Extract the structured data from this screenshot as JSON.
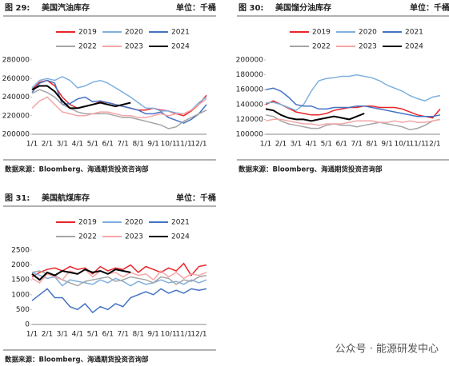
{
  "watermark": "公众号 · 能源研发中心",
  "chart_data": [
    {
      "type": "line",
      "figure_label": "图 29:",
      "title": "美国汽油库存",
      "unit": "单位：千桶",
      "source": "数据来源：Bloomberg、海通期货投资咨询部",
      "categories": [
        "1/1",
        null,
        "2/1",
        null,
        "3/1",
        null,
        "4/1",
        null,
        "5/1",
        null,
        "6/1",
        null,
        "7/1",
        null,
        "8/1",
        null,
        "9/1",
        null,
        "10/1",
        null,
        "11/1",
        null,
        "12/1",
        null
      ],
      "ylim": [
        200000,
        280000
      ],
      "yticks": [
        200000,
        220000,
        240000,
        260000,
        280000
      ],
      "series": [
        {
          "name": "2019",
          "color": "#e8262a",
          "values": [
            248000,
            256000,
            258000,
            252000,
            240000,
            232000,
            228000,
            230000,
            232000,
            235000,
            234000,
            232000,
            230000,
            228000,
            226000,
            226000,
            228000,
            226000,
            225000,
            222000,
            220000,
            225000,
            232000,
            242000
          ]
        },
        {
          "name": "2020",
          "color": "#7fb0dd",
          "values": [
            250000,
            258000,
            260000,
            258000,
            262000,
            258000,
            250000,
            252000,
            256000,
            258000,
            255000,
            250000,
            245000,
            240000,
            234000,
            228000,
            228000,
            225000,
            225000,
            223000,
            222000,
            226000,
            234000,
            240000
          ]
        },
        {
          "name": "2021",
          "color": "#4472c4",
          "values": [
            245000,
            255000,
            258000,
            255000,
            232000,
            233000,
            238000,
            240000,
            235000,
            236000,
            234000,
            232000,
            230000,
            228000,
            226000,
            222000,
            222000,
            224000,
            218000,
            215000,
            212000,
            216000,
            222000,
            232000
          ]
        },
        {
          "name": "2022",
          "color": "#a5a5a5",
          "values": [
            244000,
            248000,
            245000,
            240000,
            232000,
            228000,
            224000,
            222000,
            222000,
            222000,
            222000,
            220000,
            218000,
            218000,
            216000,
            214000,
            212000,
            210000,
            206000,
            208000,
            214000,
            218000,
            222000,
            226000
          ]
        },
        {
          "name": "2023",
          "color": "#f4a6a6",
          "values": [
            228000,
            236000,
            240000,
            232000,
            224000,
            222000,
            220000,
            220000,
            222000,
            224000,
            224000,
            222000,
            220000,
            220000,
            218000,
            218000,
            220000,
            222000,
            220000,
            222000,
            222000,
            226000,
            232000,
            238000
          ]
        },
        {
          "name": "2024",
          "color": "#000000",
          "values": [
            248000,
            252000,
            252000,
            246000,
            236000,
            228000,
            228000,
            230000,
            232000,
            234000,
            232000,
            230000,
            232000,
            234000,
            null,
            null,
            null,
            null,
            null,
            null,
            null,
            null,
            null,
            null
          ]
        }
      ]
    },
    {
      "type": "line",
      "figure_label": "图 30:",
      "title": "美国馏分油库存",
      "unit": "单位：千桶",
      "source": "数据来源：Bloomberg、海通期货投资咨询部",
      "categories": [
        "1/1",
        null,
        "2/1",
        null,
        "3/1",
        null,
        "4/1",
        null,
        "5/1",
        null,
        "6/1",
        null,
        "7/1",
        null,
        "8/1",
        null,
        "9/1",
        null,
        "10/1",
        null,
        "11/1",
        null,
        "12/1",
        null
      ],
      "ylim": [
        100000,
        200000
      ],
      "yticks": [
        100000,
        120000,
        140000,
        160000,
        180000,
        200000
      ],
      "series": [
        {
          "name": "2019",
          "color": "#e8262a",
          "values": [
            140000,
            145000,
            140000,
            135000,
            130000,
            128000,
            126000,
            126000,
            128000,
            132000,
            134000,
            136000,
            136000,
            138000,
            138000,
            136000,
            136000,
            136000,
            134000,
            130000,
            126000,
            124000,
            122000,
            134000
          ]
        },
        {
          "name": "2020",
          "color": "#7fb0dd",
          "values": [
            142000,
            143000,
            140000,
            136000,
            132000,
            140000,
            158000,
            172000,
            175000,
            176000,
            178000,
            178000,
            180000,
            178000,
            176000,
            172000,
            166000,
            162000,
            158000,
            152000,
            148000,
            145000,
            150000,
            152000
          ]
        },
        {
          "name": "2021",
          "color": "#4472c4",
          "values": [
            160000,
            162000,
            158000,
            150000,
            140000,
            138000,
            138000,
            134000,
            134000,
            136000,
            136000,
            136000,
            138000,
            138000,
            136000,
            134000,
            132000,
            130000,
            128000,
            126000,
            124000,
            124000,
            124000,
            126000
          ]
        },
        {
          "name": "2022",
          "color": "#a5a5a5",
          "values": [
            126000,
            124000,
            118000,
            114000,
            112000,
            110000,
            108000,
            108000,
            112000,
            114000,
            112000,
            112000,
            110000,
            112000,
            114000,
            116000,
            114000,
            112000,
            110000,
            106000,
            108000,
            112000,
            118000,
            120000
          ]
        },
        {
          "name": "2023",
          "color": "#f4a6a6",
          "values": [
            118000,
            120000,
            120000,
            118000,
            116000,
            114000,
            114000,
            112000,
            114000,
            114000,
            114000,
            116000,
            118000,
            118000,
            118000,
            116000,
            116000,
            118000,
            116000,
            118000,
            116000,
            116000,
            118000,
            120000
          ]
        },
        {
          "name": "2024",
          "color": "#000000",
          "values": [
            134000,
            132000,
            126000,
            122000,
            120000,
            120000,
            118000,
            120000,
            122000,
            124000,
            122000,
            120000,
            124000,
            128000,
            null,
            null,
            null,
            null,
            null,
            null,
            null,
            null,
            null,
            null
          ]
        }
      ]
    },
    {
      "type": "line",
      "figure_label": "图 31:",
      "title": "美国航煤库存",
      "unit": "单位：千桶",
      "source": "数据来源：Bloomberg、海通期货投资咨询部",
      "categories": [
        "1/1",
        null,
        "2/1",
        null,
        "3/1",
        null,
        "4/1",
        null,
        "5/1",
        null,
        "6/1",
        null,
        "7/1",
        null,
        "8/1",
        null,
        "9/1",
        null,
        "10/1",
        null,
        "11/1",
        null,
        "12/1",
        null
      ],
      "ylim": [
        0,
        2500
      ],
      "yticks": [
        0,
        500,
        1000,
        1500,
        2000,
        2500
      ],
      "series": [
        {
          "name": "2019",
          "color": "#e8262a",
          "values": [
            1600,
            1750,
            1850,
            1900,
            1800,
            1950,
            1850,
            1900,
            1700,
            1950,
            1800,
            1900,
            1850,
            2000,
            1750,
            1950,
            1850,
            1750,
            1900,
            1800,
            2050,
            1650,
            1950,
            2000
          ]
        },
        {
          "name": "2020",
          "color": "#7fb0dd",
          "values": [
            1750,
            1650,
            1550,
            1600,
            1300,
            1500,
            1450,
            1400,
            1350,
            1500,
            1400,
            1550,
            1450,
            1300,
            1450,
            1350,
            1400,
            1500,
            1400,
            1450,
            1350,
            1500,
            1400,
            1500
          ]
        },
        {
          "name": "2021",
          "color": "#4472c4",
          "values": [
            800,
            1000,
            1200,
            900,
            900,
            600,
            500,
            700,
            400,
            600,
            500,
            700,
            600,
            900,
            1000,
            1100,
            1000,
            1200,
            1050,
            1150,
            1050,
            1200,
            1150,
            1200
          ]
        },
        {
          "name": "2022",
          "color": "#a5a5a5",
          "values": [
            1750,
            1800,
            1700,
            1650,
            1500,
            1400,
            1300,
            1450,
            1500,
            1550,
            1600,
            1450,
            1500,
            1600,
            1550,
            1500,
            1400,
            1600,
            1550,
            1350,
            1500,
            1450,
            1600,
            1650
          ]
        },
        {
          "name": "2023",
          "color": "#f4a6a6",
          "values": [
            1550,
            1400,
            1700,
            1600,
            1500,
            1800,
            1700,
            1850,
            1600,
            1800,
            1700,
            1750,
            1600,
            1750,
            1650,
            1700,
            1500,
            1800,
            1600,
            1750,
            1550,
            1700,
            1650,
            1750
          ]
        },
        {
          "name": "2024",
          "color": "#000000",
          "values": [
            1700,
            1500,
            1750,
            1650,
            1800,
            1750,
            1700,
            1850,
            1750,
            1800,
            1700,
            1850,
            1800,
            1750,
            null,
            null,
            null,
            null,
            null,
            null,
            null,
            null,
            null,
            null
          ]
        }
      ]
    }
  ]
}
